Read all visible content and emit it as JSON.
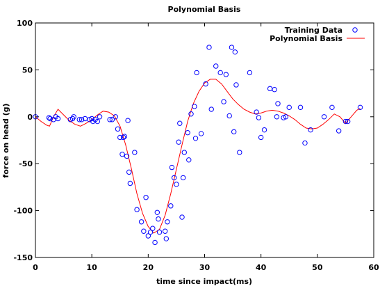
{
  "chart_data": {
    "type": "scatter",
    "title": "Polynomial Basis",
    "xlabel": "time since impact(ms)",
    "ylabel": "force on head (g)",
    "xlim": [
      0,
      60
    ],
    "ylim": [
      -150,
      100
    ],
    "xticks": [
      0,
      10,
      20,
      30,
      40,
      50,
      60
    ],
    "yticks": [
      -150,
      -100,
      -50,
      0,
      50,
      100
    ],
    "legend_position": "top-right",
    "series": [
      {
        "name": "Training Data",
        "kind": "points",
        "marker": "open-circle",
        "color": "#0000ff",
        "x": [
          0.0,
          2.4,
          2.6,
          3.2,
          3.6,
          4.0,
          6.2,
          6.6,
          6.8,
          7.8,
          8.2,
          8.8,
          9.6,
          10.0,
          10.2,
          10.6,
          11.0,
          11.4,
          13.2,
          13.6,
          14.2,
          14.6,
          15.0,
          15.4,
          15.6,
          15.8,
          16.2,
          16.4,
          16.6,
          16.8,
          17.6,
          18.0,
          18.8,
          19.2,
          19.6,
          20.0,
          20.4,
          20.8,
          21.2,
          21.6,
          21.8,
          22.0,
          23.0,
          23.2,
          23.4,
          24.0,
          24.2,
          24.6,
          25.0,
          25.4,
          25.6,
          26.0,
          26.2,
          26.4,
          27.0,
          27.2,
          27.6,
          28.2,
          28.4,
          28.6,
          29.4,
          30.2,
          30.8,
          31.2,
          32.0,
          32.8,
          33.4,
          33.8,
          34.4,
          34.8,
          35.2,
          35.4,
          35.6,
          36.2,
          38.0,
          39.2,
          39.6,
          40.0,
          40.6,
          41.6,
          42.4,
          42.8,
          43.0,
          44.0,
          44.4,
          45.0,
          47.0,
          47.8,
          48.8,
          51.2,
          52.6,
          53.8,
          55.0,
          55.4,
          57.6
        ],
        "y": [
          0,
          -1,
          -2,
          -3,
          0,
          -2,
          -3,
          -2,
          0,
          -3,
          -3,
          -2,
          -3,
          -2,
          -5,
          -3,
          -5,
          0,
          -3,
          -3,
          0,
          -13,
          -22,
          -40,
          -22,
          -21,
          -42,
          -4,
          -59,
          -71,
          -38,
          -99,
          -112,
          -122,
          -86,
          -127,
          -123,
          -119,
          -134,
          -102,
          -109,
          -123,
          -122,
          -130,
          -112,
          -95,
          -54,
          -65,
          -72,
          -27,
          -7,
          -107,
          -65,
          -38,
          -17,
          -46,
          3,
          11,
          -23,
          47,
          -18,
          35,
          74,
          8,
          54,
          47,
          16,
          45,
          1,
          74,
          -16,
          69,
          34,
          -38,
          47,
          5,
          -1,
          -22,
          -14,
          30,
          29,
          0,
          14,
          -1,
          0,
          10,
          10,
          -28,
          -14,
          0,
          10,
          -15,
          -5,
          -5,
          10
        ]
      },
      {
        "name": "Polynomial Basis",
        "kind": "line",
        "color": "#ff0000",
        "x": [
          0,
          1,
          2,
          2.5,
          3.2,
          4,
          5,
          6,
          7,
          8,
          9,
          10,
          11,
          12,
          13,
          14,
          15,
          16,
          17,
          18,
          19,
          20,
          21,
          22,
          23,
          24,
          25,
          26,
          27,
          28,
          29,
          30,
          31,
          32,
          33,
          34,
          35,
          36,
          37,
          38,
          39,
          40,
          41,
          42,
          43,
          44,
          45,
          46,
          47,
          48,
          49,
          50,
          51,
          52,
          53,
          54,
          55,
          56,
          57,
          57.6
        ],
        "y": [
          0,
          -5,
          -9,
          -10,
          0,
          8,
          2,
          -4,
          -8,
          -10,
          -7,
          -3,
          2,
          6,
          5,
          1,
          -10,
          -30,
          -55,
          -82,
          -103,
          -117,
          -124,
          -120,
          -105,
          -82,
          -56,
          -30,
          -5,
          14,
          27,
          36,
          40,
          40,
          35,
          27,
          19,
          13,
          8,
          5,
          3,
          4,
          6,
          7,
          6,
          4,
          1,
          -3,
          -8,
          -12,
          -13,
          -12,
          -8,
          -3,
          3,
          0,
          -7,
          0,
          7,
          9
        ]
      }
    ]
  }
}
